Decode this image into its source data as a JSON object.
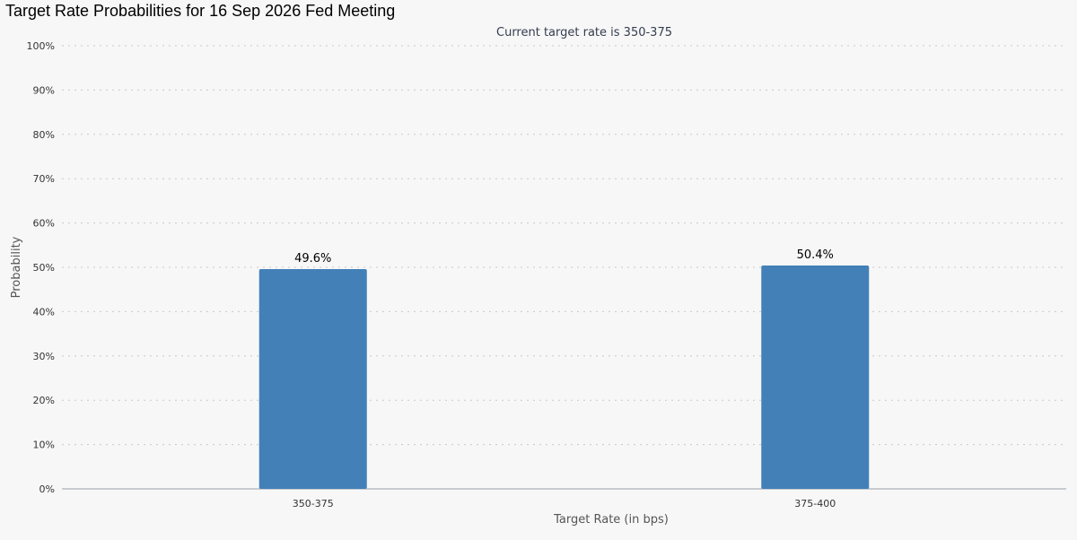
{
  "page_title": "Target Rate Probabilities for 16 Sep 2026 Fed Meeting",
  "chart_data": {
    "type": "bar",
    "subtitle": "Current target rate is 350-375",
    "categories": [
      "350-375",
      "375-400"
    ],
    "values": [
      49.6,
      50.4
    ],
    "data_labels": [
      "49.6%",
      "50.4%"
    ],
    "xlabel": "Target Rate (in bps)",
    "ylabel": "Probability",
    "ylim": [
      0,
      100
    ],
    "yticks": [
      "0%",
      "10%",
      "20%",
      "30%",
      "40%",
      "50%",
      "60%",
      "70%",
      "80%",
      "90%",
      "100%"
    ],
    "grid": true,
    "bar_color": "#4380b8"
  }
}
